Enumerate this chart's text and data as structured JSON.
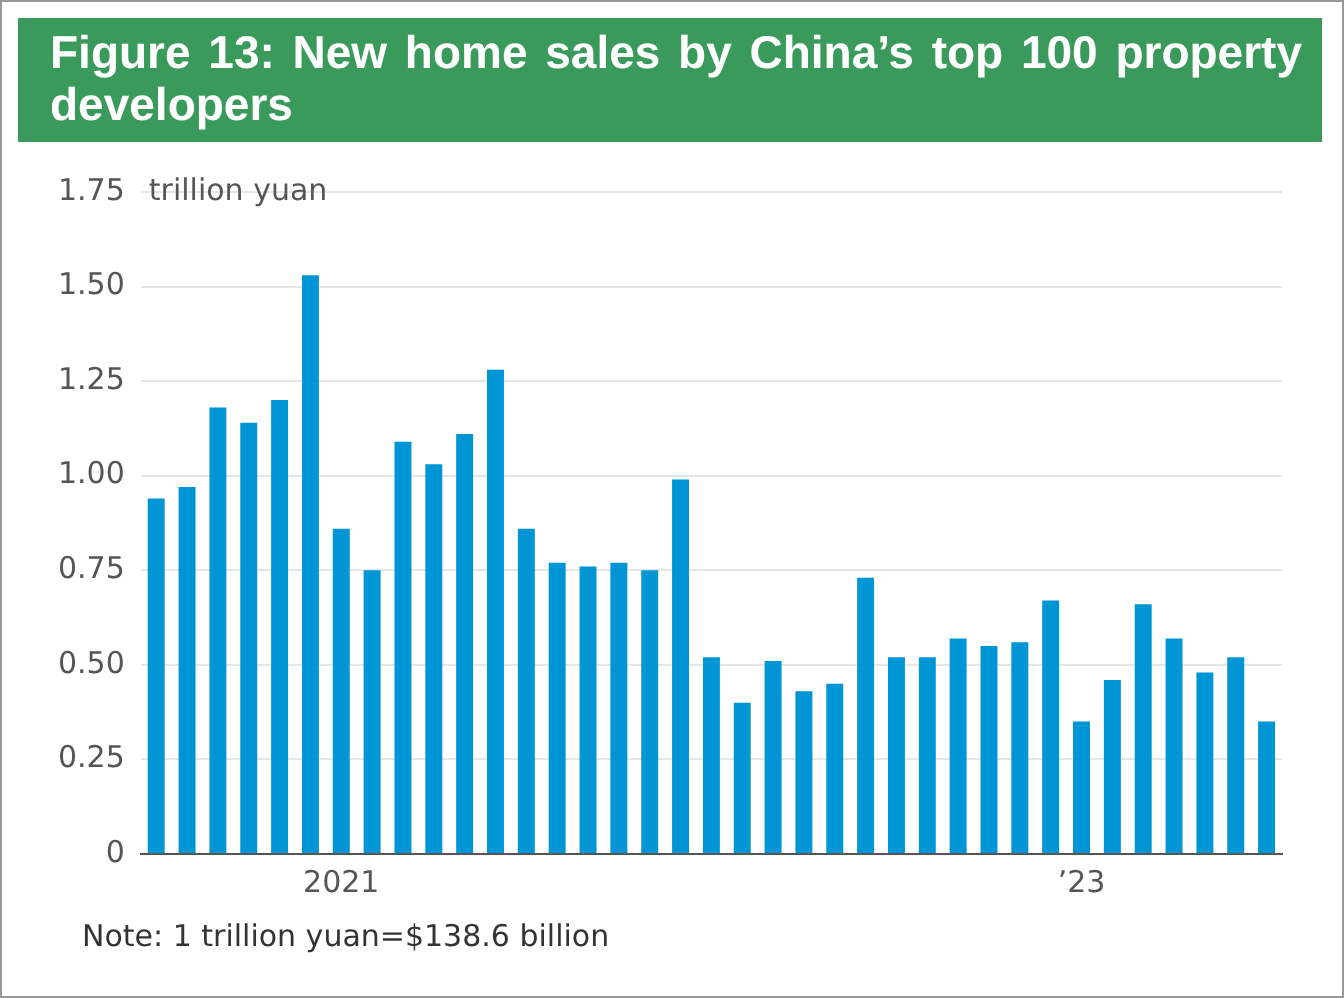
{
  "chart_data": {
    "type": "bar",
    "title": "Figure 13: New home sales by China’s top 100 property developers",
    "ylabel": "trillion yuan",
    "categories": [
      null,
      null,
      null,
      null,
      null,
      null,
      "2021",
      null,
      null,
      null,
      null,
      null,
      null,
      null,
      null,
      null,
      null,
      null,
      null,
      null,
      null,
      null,
      null,
      null,
      null,
      null,
      null,
      null,
      null,
      null,
      "’23",
      null,
      null,
      null,
      null,
      null,
      null
    ],
    "values": [
      0.94,
      0.97,
      1.18,
      1.14,
      1.2,
      1.53,
      0.86,
      0.75,
      1.09,
      1.03,
      1.11,
      1.28,
      0.86,
      0.77,
      0.76,
      0.77,
      0.75,
      0.99,
      0.52,
      0.4,
      0.51,
      0.43,
      0.45,
      0.73,
      0.52,
      0.52,
      0.57,
      0.55,
      0.56,
      0.67,
      0.35,
      0.46,
      0.66,
      0.57,
      0.48,
      0.52,
      0.35
    ],
    "color": "#0096d6",
    "ylim": [
      0,
      1.75
    ],
    "yticks": [
      0,
      0.25,
      {
        "value": 0.5,
        "label": "0.50"
      },
      0.75,
      {
        "value": 1,
        "label": "1.00"
      },
      1.25,
      {
        "value": 1.5,
        "label": "1.50"
      },
      1.75
    ],
    "grid": "y",
    "annotations": [
      "Note: 1 trillion yuan=$138.6 billion"
    ]
  }
}
